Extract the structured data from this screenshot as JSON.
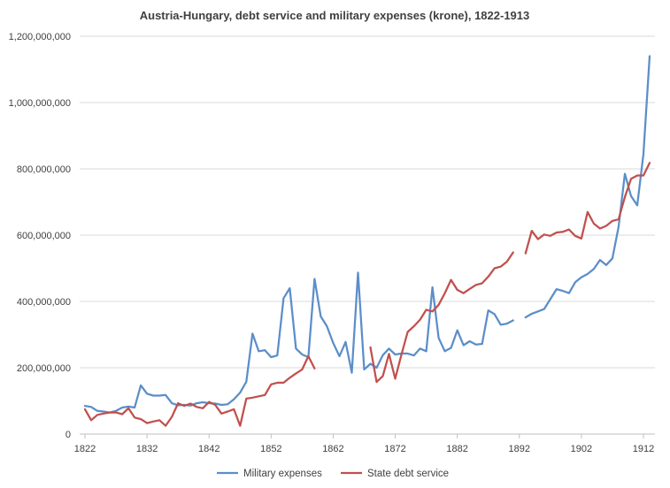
{
  "chart_data": {
    "type": "line",
    "title": "Austria-Hungary, debt service and military expenses (krone), 1822-1913",
    "xlabel": "",
    "ylabel": "",
    "xlim": [
      1822,
      1913
    ],
    "ylim": [
      0,
      1200000000
    ],
    "y_ticks": [
      0,
      200000000,
      400000000,
      600000000,
      800000000,
      1000000000,
      1200000000
    ],
    "y_tick_labels": [
      "0",
      "200,000,000",
      "400,000,000",
      "600,000,000",
      "800,000,000",
      "1,000,000,000",
      "1,200,000,000"
    ],
    "x_ticks": [
      1822,
      1832,
      1842,
      1852,
      1862,
      1872,
      1882,
      1892,
      1902,
      1912
    ],
    "x_tick_labels": [
      "1822",
      "1832",
      "1842",
      "1852",
      "1862",
      "1872",
      "1882",
      "1892",
      "1902",
      "1912"
    ],
    "grid": "horizontal",
    "legend_position": "bottom",
    "series": [
      {
        "name": "Military expenses",
        "color": "#5b8ec9",
        "points": [
          [
            1822,
            85000000
          ],
          [
            1823,
            82000000
          ],
          [
            1824,
            70000000
          ],
          [
            1825,
            68000000
          ],
          [
            1826,
            65000000
          ],
          [
            1827,
            70000000
          ],
          [
            1828,
            80000000
          ],
          [
            1829,
            83000000
          ],
          [
            1830,
            80000000
          ],
          [
            1831,
            147000000
          ],
          [
            1832,
            122000000
          ],
          [
            1833,
            116000000
          ],
          [
            1834,
            116000000
          ],
          [
            1835,
            118000000
          ],
          [
            1836,
            93000000
          ],
          [
            1837,
            87000000
          ],
          [
            1838,
            88000000
          ],
          [
            1839,
            86000000
          ],
          [
            1840,
            93000000
          ],
          [
            1841,
            96000000
          ],
          [
            1842,
            93000000
          ],
          [
            1843,
            92000000
          ],
          [
            1844,
            88000000
          ],
          [
            1845,
            90000000
          ],
          [
            1846,
            105000000
          ],
          [
            1847,
            125000000
          ],
          [
            1848,
            158000000
          ],
          [
            1849,
            303000000
          ],
          [
            1850,
            250000000
          ],
          [
            1851,
            253000000
          ],
          [
            1852,
            232000000
          ],
          [
            1853,
            237000000
          ],
          [
            1854,
            410000000
          ],
          [
            1855,
            440000000
          ],
          [
            1856,
            258000000
          ],
          [
            1857,
            240000000
          ],
          [
            1858,
            232000000
          ],
          [
            1859,
            468000000
          ],
          [
            1860,
            355000000
          ],
          [
            1861,
            325000000
          ],
          [
            1862,
            275000000
          ],
          [
            1863,
            235000000
          ],
          [
            1864,
            278000000
          ],
          [
            1865,
            185000000
          ],
          [
            1866,
            487000000
          ],
          [
            1867,
            195000000
          ],
          [
            1868,
            212000000
          ],
          [
            1869,
            200000000
          ],
          [
            1870,
            238000000
          ],
          [
            1871,
            258000000
          ],
          [
            1872,
            240000000
          ],
          [
            1873,
            243000000
          ],
          [
            1874,
            243000000
          ],
          [
            1875,
            237000000
          ],
          [
            1876,
            258000000
          ],
          [
            1877,
            250000000
          ],
          [
            1878,
            443000000
          ],
          [
            1879,
            290000000
          ],
          [
            1880,
            250000000
          ],
          [
            1881,
            260000000
          ],
          [
            1882,
            313000000
          ],
          [
            1883,
            268000000
          ],
          [
            1884,
            280000000
          ],
          [
            1885,
            270000000
          ],
          [
            1886,
            272000000
          ],
          [
            1887,
            373000000
          ],
          [
            1888,
            362000000
          ],
          [
            1889,
            330000000
          ],
          [
            1890,
            333000000
          ],
          [
            1891,
            343000000
          ],
          [
            1892,
            null
          ],
          [
            1893,
            352000000
          ],
          [
            1894,
            363000000
          ],
          [
            1895,
            370000000
          ],
          [
            1896,
            377000000
          ],
          [
            1897,
            407000000
          ],
          [
            1898,
            437000000
          ],
          [
            1899,
            432000000
          ],
          [
            1900,
            425000000
          ],
          [
            1901,
            458000000
          ],
          [
            1902,
            473000000
          ],
          [
            1903,
            483000000
          ],
          [
            1904,
            498000000
          ],
          [
            1905,
            525000000
          ],
          [
            1906,
            510000000
          ],
          [
            1907,
            530000000
          ],
          [
            1908,
            625000000
          ],
          [
            1909,
            785000000
          ],
          [
            1910,
            718000000
          ],
          [
            1911,
            690000000
          ],
          [
            1912,
            845000000
          ],
          [
            1913,
            1140000000
          ]
        ]
      },
      {
        "name": "State debt service",
        "color": "#c0504d",
        "points": [
          [
            1822,
            75000000
          ],
          [
            1823,
            42000000
          ],
          [
            1824,
            58000000
          ],
          [
            1825,
            62000000
          ],
          [
            1826,
            65000000
          ],
          [
            1827,
            65000000
          ],
          [
            1828,
            60000000
          ],
          [
            1829,
            78000000
          ],
          [
            1830,
            50000000
          ],
          [
            1831,
            45000000
          ],
          [
            1832,
            33000000
          ],
          [
            1833,
            38000000
          ],
          [
            1834,
            42000000
          ],
          [
            1835,
            25000000
          ],
          [
            1836,
            52000000
          ],
          [
            1837,
            93000000
          ],
          [
            1838,
            85000000
          ],
          [
            1839,
            92000000
          ],
          [
            1840,
            82000000
          ],
          [
            1841,
            78000000
          ],
          [
            1842,
            97000000
          ],
          [
            1843,
            88000000
          ],
          [
            1844,
            62000000
          ],
          [
            1845,
            68000000
          ],
          [
            1846,
            75000000
          ],
          [
            1847,
            25000000
          ],
          [
            1848,
            107000000
          ],
          [
            1849,
            110000000
          ],
          [
            1850,
            114000000
          ],
          [
            1851,
            118000000
          ],
          [
            1852,
            150000000
          ],
          [
            1853,
            155000000
          ],
          [
            1854,
            155000000
          ],
          [
            1855,
            170000000
          ],
          [
            1856,
            183000000
          ],
          [
            1857,
            195000000
          ],
          [
            1858,
            235000000
          ],
          [
            1859,
            198000000
          ],
          [
            1860,
            null
          ],
          [
            1861,
            null
          ],
          [
            1862,
            null
          ],
          [
            1863,
            null
          ],
          [
            1864,
            null
          ],
          [
            1865,
            null
          ],
          [
            1866,
            null
          ],
          [
            1867,
            null
          ],
          [
            1868,
            262000000
          ],
          [
            1869,
            157000000
          ],
          [
            1870,
            175000000
          ],
          [
            1871,
            242000000
          ],
          [
            1872,
            167000000
          ],
          [
            1873,
            240000000
          ],
          [
            1874,
            308000000
          ],
          [
            1875,
            325000000
          ],
          [
            1876,
            345000000
          ],
          [
            1877,
            375000000
          ],
          [
            1878,
            370000000
          ],
          [
            1879,
            390000000
          ],
          [
            1880,
            425000000
          ],
          [
            1881,
            465000000
          ],
          [
            1882,
            435000000
          ],
          [
            1883,
            425000000
          ],
          [
            1884,
            438000000
          ],
          [
            1885,
            450000000
          ],
          [
            1886,
            455000000
          ],
          [
            1887,
            475000000
          ],
          [
            1888,
            500000000
          ],
          [
            1889,
            505000000
          ],
          [
            1890,
            520000000
          ],
          [
            1891,
            548000000
          ],
          [
            1892,
            null
          ],
          [
            1893,
            545000000
          ],
          [
            1894,
            613000000
          ],
          [
            1895,
            588000000
          ],
          [
            1896,
            602000000
          ],
          [
            1897,
            598000000
          ],
          [
            1898,
            608000000
          ],
          [
            1899,
            610000000
          ],
          [
            1900,
            617000000
          ],
          [
            1901,
            598000000
          ],
          [
            1902,
            590000000
          ],
          [
            1903,
            670000000
          ],
          [
            1904,
            635000000
          ],
          [
            1905,
            620000000
          ],
          [
            1906,
            628000000
          ],
          [
            1907,
            643000000
          ],
          [
            1908,
            648000000
          ],
          [
            1909,
            715000000
          ],
          [
            1910,
            770000000
          ],
          [
            1911,
            780000000
          ],
          [
            1912,
            780000000
          ],
          [
            1913,
            818000000
          ]
        ]
      }
    ]
  }
}
